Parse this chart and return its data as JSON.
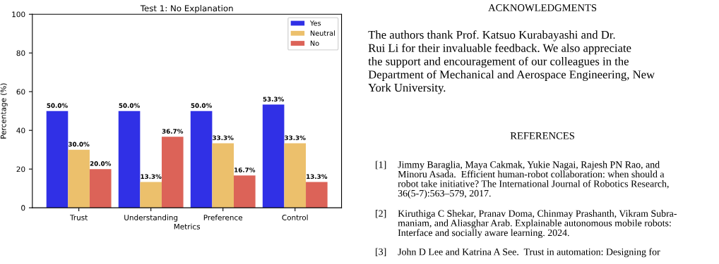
{
  "chart_data": [
    {
      "type": "bar",
      "title": "Test 1: No Explanation",
      "xlabel": "Metrics",
      "ylabel": "Percentage (%)",
      "categories": [
        "Trust",
        "Understanding",
        "Preference",
        "Control"
      ],
      "series": [
        {
          "name": "Yes",
          "color": "#3030e6",
          "values": [
            50.0,
            50.0,
            50.0,
            53.3
          ],
          "value_labels": [
            "50.0%",
            "50.0%",
            "50.0%",
            "53.3%"
          ]
        },
        {
          "name": "Neutral",
          "color": "#ecc06c",
          "values": [
            30.0,
            13.3,
            33.3,
            33.3
          ],
          "value_labels": [
            "30.0%",
            "13.3%",
            "33.3%",
            "33.3%"
          ]
        },
        {
          "name": "No",
          "color": "#dc6358",
          "values": [
            20.0,
            36.7,
            16.7,
            13.3
          ],
          "value_labels": [
            "20.0%",
            "36.7%",
            "16.7%",
            "13.3%"
          ]
        }
      ],
      "ylim": [
        0,
        100
      ],
      "yticks": [
        0,
        20,
        40,
        60,
        80,
        100
      ],
      "grid": false,
      "legend": "top right"
    },
    {
      "type": "other",
      "annotations": [
        "ACKNOWLEDGMENTS",
        "The authors thank Prof. Katsuo Kurabayashi and Dr.\nRui Li for their invaluable feedback. We also appreciate\nthe support and encouragement of our colleagues in the\nDepartment of Mechanical and Aerospace Engineering, New\nYork University.",
        "REFERENCES",
        "[1] Jimmy Baraglia, Maya Cakmak, Yukie Nagai, Rajesh PN Rao, and\nMinoru Asada.  Efficient human-robot collaboration: when should a\nrobot take initiative? The International Journal of Robotics Research,\n36(5-7):563–579, 2017.",
        "[2] Kiruthiga C Shekar, Pranav Doma, Chinmay Prashanth, Vikram Subra-\nmaniam, and Aliasghar Arab. Explainable autonomous mobile robots:\nInterface and socially aware learning. 2024.",
        "[3] John D Lee and Katrina A See.  Trust in automation: Designing for"
      ]
    }
  ]
}
